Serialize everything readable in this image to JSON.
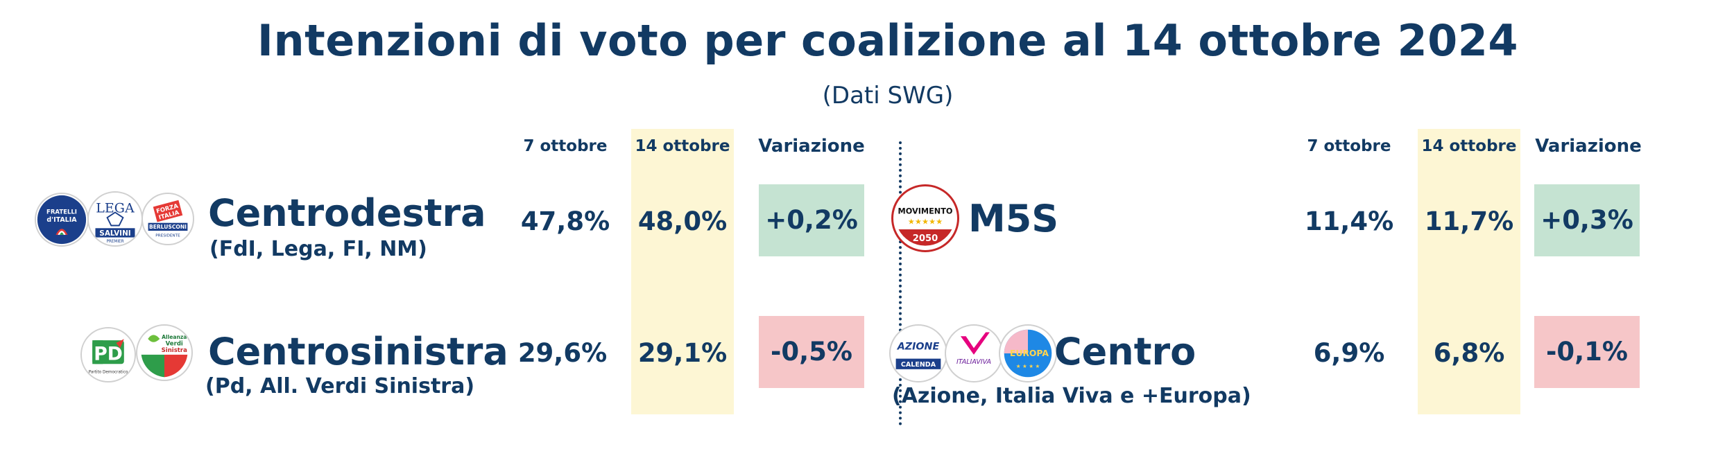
{
  "title": "Intenzioni di voto per coalizione al 14 ottobre 2024",
  "subtitle": "(Dati SWG)",
  "columns": {
    "prev": "7 ottobre",
    "curr": "14 ottobre",
    "change": "Variazione"
  },
  "rows": [
    {
      "name": "Centrodestra",
      "sub": "(FdI, Lega, FI, NM)",
      "prev": "47,8%",
      "curr": "48,0%",
      "change": "+0,2%",
      "trend": "positive"
    },
    {
      "name": "Centrosinistra",
      "sub": "(Pd, All. Verdi Sinistra)",
      "prev": "29,6%",
      "curr": "29,1%",
      "change": "-0,5%",
      "trend": "negative"
    },
    {
      "name": "M5S",
      "sub": "",
      "prev": "11,4%",
      "curr": "11,7%",
      "change": "+0,3%",
      "trend": "positive"
    },
    {
      "name": "Centro",
      "sub": "(Azione, Italia Viva e +Europa)",
      "prev": "6,9%",
      "curr": "6,8%",
      "change": "-0,1%",
      "trend": "negative"
    }
  ],
  "logos": {
    "fdi": [
      "FRATELLI",
      "d'ITALIA"
    ],
    "lega": [
      "LEGA",
      "SALVINI",
      "PREMIER"
    ],
    "fi": [
      "FORZA",
      "ITALIA",
      "BERLUSCONI",
      "PRESIDENTE"
    ],
    "pd": [
      "PD",
      "Partito Democratico"
    ],
    "avs": [
      "Alleanza",
      "Verdi",
      "Sinistra"
    ],
    "m5s": [
      "MOVIMENTO",
      "2050"
    ],
    "azione": [
      "AZIONE",
      "CALENDA"
    ],
    "iv": [
      "ITALIAVIVA"
    ],
    "europa": [
      "EUROPA"
    ]
  },
  "colors": {
    "text": "#123a63",
    "highlight": "#fdf6d4",
    "positive": "#c5e3d2",
    "negative": "#f6c6c8"
  },
  "chart_data": {
    "type": "table",
    "title": "Intenzioni di voto per coalizione al 14 ottobre 2024",
    "subtitle": "(Dati SWG)",
    "columns": [
      "7 ottobre",
      "14 ottobre",
      "Variazione"
    ],
    "rows": [
      {
        "label": "Centrodestra",
        "values": [
          47.8,
          48.0,
          0.2
        ]
      },
      {
        "label": "Centrosinistra",
        "values": [
          29.6,
          29.1,
          -0.5
        ]
      },
      {
        "label": "M5S",
        "values": [
          11.4,
          11.7,
          0.3
        ]
      },
      {
        "label": "Centro",
        "values": [
          6.9,
          6.8,
          -0.1
        ]
      }
    ]
  }
}
